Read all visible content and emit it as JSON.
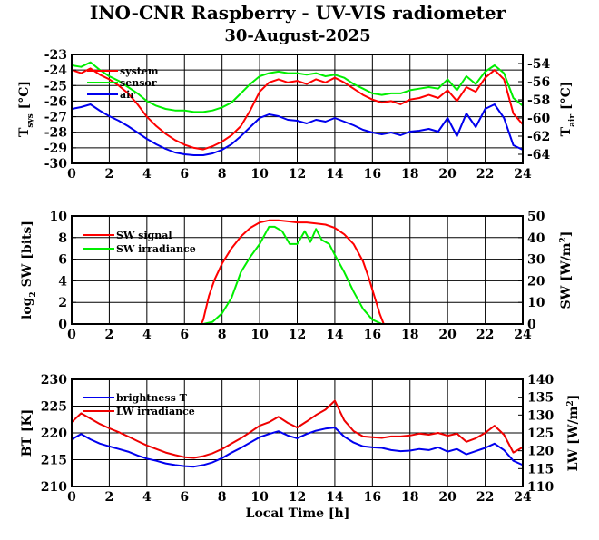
{
  "title": "INO-CNR Raspberry - UV-VIS radiometer",
  "subtitle": "30-August-2025",
  "xlabel": "Local Time [h]",
  "chart_data": [
    {
      "type": "line",
      "xlim": [
        0,
        24
      ],
      "xticks": [
        0,
        2,
        4,
        6,
        8,
        10,
        12,
        14,
        16,
        18,
        20,
        22,
        24
      ],
      "ylabel_left": "T_sys [°C]",
      "ylim_left": [
        -30,
        -23
      ],
      "yticks_left": [
        -30,
        -29,
        -28,
        -27,
        -26,
        -25,
        -24,
        -23
      ],
      "ylabel_right": "T_air [°C]",
      "ylim_right": [
        -65,
        -53
      ],
      "yticks_right": [
        -64,
        -62,
        -60,
        -58,
        -56,
        -54
      ],
      "grid": true,
      "legend_placement": "top-left",
      "series": [
        {
          "name": "system",
          "color": "#ff0000",
          "axis": "left",
          "x": [
            0,
            0.5,
            1,
            1.5,
            2,
            2.5,
            3,
            3.5,
            4,
            4.5,
            5,
            5.5,
            6,
            6.5,
            7,
            7.5,
            8,
            8.5,
            9,
            9.5,
            10,
            10.5,
            11,
            11.5,
            12,
            12.5,
            13,
            13.5,
            14,
            14.5,
            15,
            15.5,
            16,
            16.5,
            17,
            17.5,
            18,
            18.5,
            19,
            19.5,
            20,
            20.5,
            21,
            21.5,
            22,
            22.5,
            23,
            23.5,
            24
          ],
          "values": [
            -24.0,
            -24.2,
            -23.9,
            -24.3,
            -24.6,
            -25.0,
            -25.5,
            -26.2,
            -27.0,
            -27.6,
            -28.1,
            -28.5,
            -28.8,
            -29.0,
            -29.1,
            -28.9,
            -28.6,
            -28.2,
            -27.6,
            -26.6,
            -25.4,
            -24.8,
            -24.6,
            -24.8,
            -24.7,
            -24.9,
            -24.6,
            -24.8,
            -24.5,
            -24.8,
            -25.2,
            -25.6,
            -25.9,
            -26.1,
            -26.0,
            -26.2,
            -25.9,
            -25.8,
            -25.6,
            -25.8,
            -25.3,
            -26.0,
            -25.1,
            -25.4,
            -24.5,
            -24.0,
            -24.6,
            -26.8,
            -27.5
          ]
        },
        {
          "name": "sensor",
          "color": "#00ee00",
          "axis": "left",
          "x": [
            0,
            0.5,
            1,
            1.5,
            2,
            2.5,
            3,
            3.5,
            4,
            4.5,
            5,
            5.5,
            6,
            6.5,
            7,
            7.5,
            8,
            8.5,
            9,
            9.5,
            10,
            10.5,
            11,
            11.5,
            12,
            12.5,
            13,
            13.5,
            14,
            14.5,
            15,
            15.5,
            16,
            16.5,
            17,
            17.5,
            18,
            18.5,
            19,
            19.5,
            20,
            20.5,
            21,
            21.5,
            22,
            22.5,
            23,
            23.5,
            24
          ],
          "values": [
            -23.7,
            -23.8,
            -23.5,
            -24.0,
            -24.4,
            -24.7,
            -25.1,
            -25.5,
            -26.0,
            -26.3,
            -26.5,
            -26.6,
            -26.6,
            -26.7,
            -26.7,
            -26.6,
            -26.4,
            -26.1,
            -25.5,
            -24.9,
            -24.4,
            -24.2,
            -24.1,
            -24.2,
            -24.2,
            -24.3,
            -24.2,
            -24.4,
            -24.3,
            -24.5,
            -24.9,
            -25.2,
            -25.5,
            -25.6,
            -25.5,
            -25.5,
            -25.3,
            -25.2,
            -25.1,
            -25.2,
            -24.6,
            -25.3,
            -24.4,
            -24.9,
            -24.1,
            -23.7,
            -24.2,
            -25.8,
            -26.3
          ]
        },
        {
          "name": "air",
          "color": "#0000ee",
          "axis": "right",
          "x": [
            0,
            0.5,
            1,
            1.5,
            2,
            2.5,
            3,
            3.5,
            4,
            4.5,
            5,
            5.5,
            6,
            6.5,
            7,
            7.5,
            8,
            8.5,
            9,
            9.5,
            10,
            10.5,
            11,
            11.5,
            12,
            12.5,
            13,
            13.5,
            14,
            14.5,
            15,
            15.5,
            16,
            16.5,
            17,
            17.5,
            18,
            18.5,
            19,
            19.5,
            20,
            20.5,
            21,
            21.5,
            22,
            22.5,
            23,
            23.5,
            24
          ],
          "values": [
            -59.0,
            -58.8,
            -58.5,
            -59.2,
            -59.8,
            -60.3,
            -60.9,
            -61.6,
            -62.3,
            -62.9,
            -63.4,
            -63.8,
            -64.0,
            -64.1,
            -64.1,
            -63.9,
            -63.5,
            -62.9,
            -62.0,
            -61.0,
            -60.0,
            -59.6,
            -59.8,
            -60.2,
            -60.3,
            -60.6,
            -60.2,
            -60.4,
            -60.0,
            -60.4,
            -60.8,
            -61.3,
            -61.6,
            -61.8,
            -61.6,
            -61.9,
            -61.5,
            -61.4,
            -61.2,
            -61.5,
            -60.0,
            -62.0,
            -59.5,
            -61.0,
            -59.0,
            -58.5,
            -60.0,
            -63.0,
            -63.5
          ]
        }
      ]
    },
    {
      "type": "line",
      "xlim": [
        0,
        24
      ],
      "xticks": [
        0,
        2,
        4,
        6,
        8,
        10,
        12,
        14,
        16,
        18,
        20,
        22,
        24
      ],
      "ylabel_left": "log2 SW [bits]",
      "ylim_left": [
        0,
        10
      ],
      "yticks_left": [
        0,
        2,
        4,
        6,
        8,
        10
      ],
      "ylabel_right": "SW [W/m2]",
      "ylim_right": [
        0,
        50
      ],
      "yticks_right": [
        0,
        10,
        20,
        30,
        40,
        50
      ],
      "grid": true,
      "legend_placement": "top-left",
      "series": [
        {
          "name": "SW signal",
          "color": "#ff0000",
          "axis": "left",
          "x": [
            0,
            6.9,
            7.0,
            7.3,
            7.6,
            8.0,
            8.5,
            9.0,
            9.5,
            10.0,
            10.5,
            11.0,
            11.5,
            12.0,
            12.5,
            13.0,
            13.5,
            14.0,
            14.5,
            15.0,
            15.5,
            15.8,
            16.1,
            16.4,
            16.6,
            24
          ],
          "values": [
            0,
            0,
            0.4,
            2.6,
            4.1,
            5.6,
            7.0,
            8.1,
            8.9,
            9.4,
            9.6,
            9.6,
            9.5,
            9.4,
            9.4,
            9.3,
            9.2,
            8.9,
            8.3,
            7.4,
            5.8,
            4.3,
            2.6,
            0.9,
            0,
            0
          ]
        },
        {
          "name": "SW irradiance",
          "color": "#00ee00",
          "axis": "right",
          "x": [
            0,
            7.0,
            7.5,
            8.0,
            8.5,
            9.0,
            9.5,
            10.0,
            10.5,
            10.8,
            11.2,
            11.6,
            12.0,
            12.4,
            12.7,
            13.0,
            13.3,
            13.7,
            14.0,
            14.5,
            15.0,
            15.5,
            16.0,
            16.5,
            24
          ],
          "values": [
            0,
            0,
            1,
            5,
            12,
            24,
            31,
            37,
            45,
            45,
            43,
            37,
            37,
            43,
            38,
            44,
            39,
            37,
            32,
            24,
            15,
            7,
            2,
            0,
            0
          ]
        }
      ]
    },
    {
      "type": "line",
      "xlim": [
        0,
        24
      ],
      "xticks": [
        0,
        2,
        4,
        6,
        8,
        10,
        12,
        14,
        16,
        18,
        20,
        22,
        24
      ],
      "xlabel": "Local Time [h]",
      "ylabel_left": "BT [K]",
      "ylim_left": [
        210,
        230
      ],
      "yticks_left": [
        210,
        215,
        220,
        225,
        230
      ],
      "ylabel_right": "LW [W/m2]",
      "ylim_right": [
        110,
        140
      ],
      "yticks_right": [
        110,
        115,
        120,
        125,
        130,
        135,
        140
      ],
      "grid": true,
      "legend_placement": "top-left",
      "series": [
        {
          "name": "brightness T",
          "color": "#0000ee",
          "axis": "left",
          "x": [
            0,
            0.5,
            1,
            1.5,
            2,
            2.5,
            3,
            3.5,
            4,
            4.5,
            5,
            5.5,
            6,
            6.5,
            7,
            7.5,
            8,
            8.5,
            9,
            9.5,
            10,
            10.5,
            11,
            11.5,
            12,
            12.5,
            13,
            13.5,
            14,
            14.5,
            15,
            15.5,
            16,
            16.5,
            17,
            17.5,
            18,
            18.5,
            19,
            19.5,
            20,
            20.5,
            21,
            21.5,
            22,
            22.5,
            23,
            23.5,
            24
          ],
          "values": [
            218.8,
            219.8,
            218.8,
            218.0,
            217.5,
            217.0,
            216.5,
            215.8,
            215.2,
            214.8,
            214.3,
            214.0,
            213.8,
            213.7,
            214.0,
            214.5,
            215.3,
            216.3,
            217.2,
            218.2,
            219.2,
            219.8,
            220.3,
            219.5,
            219.0,
            219.8,
            220.4,
            220.8,
            221.0,
            219.3,
            218.2,
            217.5,
            217.3,
            217.2,
            216.8,
            216.6,
            216.7,
            217.0,
            216.8,
            217.3,
            216.5,
            217.0,
            216.0,
            216.6,
            217.2,
            218.0,
            216.8,
            214.8,
            214.0
          ]
        },
        {
          "name": "LW irradiance",
          "color": "#ee0000",
          "axis": "right",
          "x": [
            0,
            0.5,
            1,
            1.5,
            2,
            2.5,
            3,
            3.5,
            4,
            4.5,
            5,
            5.5,
            6,
            6.5,
            7,
            7.5,
            8,
            8.5,
            9,
            9.5,
            10,
            10.5,
            11,
            11.5,
            12,
            12.5,
            13,
            13.5,
            14,
            14.5,
            15,
            15.5,
            16,
            16.5,
            17,
            17.5,
            18,
            18.5,
            19,
            19.5,
            20,
            20.5,
            21,
            21.5,
            22,
            22.5,
            23,
            23.5,
            24
          ],
          "values": [
            128.0,
            130.5,
            129.0,
            127.5,
            126.3,
            125.2,
            124.0,
            122.7,
            121.5,
            120.5,
            119.5,
            118.8,
            118.2,
            118.0,
            118.5,
            119.3,
            120.5,
            122.0,
            123.5,
            125.2,
            127.0,
            128.0,
            129.5,
            127.8,
            126.5,
            128.2,
            130.0,
            131.5,
            134.0,
            128.5,
            125.5,
            124.0,
            123.8,
            123.6,
            124.0,
            124.0,
            124.3,
            124.8,
            124.5,
            125.0,
            124.2,
            124.8,
            122.5,
            123.5,
            125.0,
            127.0,
            124.5,
            119.5,
            121.0
          ]
        }
      ]
    }
  ]
}
